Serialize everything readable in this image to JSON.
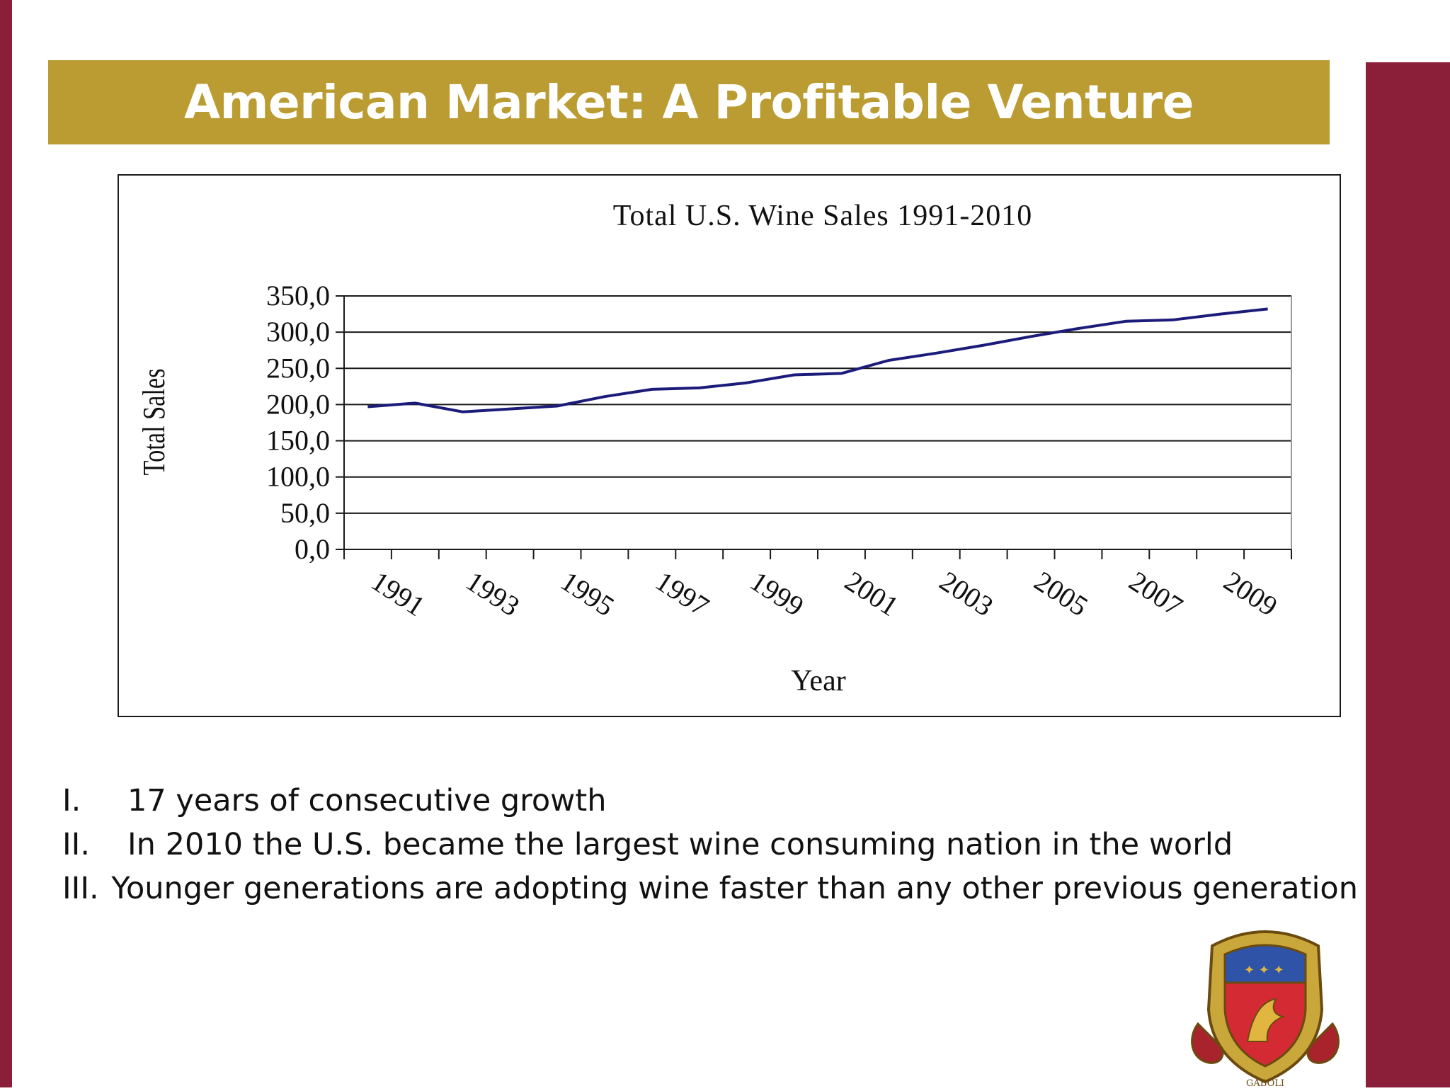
{
  "slide": {
    "title": "American Market: A Profitable Venture",
    "accent_color": "#8b1f3a",
    "title_bar_color": "#bb9c32"
  },
  "chart_data": {
    "type": "line",
    "title": "Total U.S. Wine Sales 1991-2010",
    "xlabel": "Year",
    "ylabel": "Total Sales",
    "x": [
      1991,
      1992,
      1993,
      1994,
      1995,
      1996,
      1997,
      1998,
      1999,
      2000,
      2001,
      2002,
      2003,
      2004,
      2005,
      2006,
      2007,
      2008,
      2009,
      2010
    ],
    "x_tick_labels": [
      "1991",
      "1993",
      "1995",
      "1997",
      "1999",
      "2001",
      "2003",
      "2005",
      "2007",
      "2009"
    ],
    "y_tick_labels": [
      "0,0",
      "50,0",
      "100,0",
      "150,0",
      "200,0",
      "250,0",
      "300,0",
      "350,0"
    ],
    "series": [
      {
        "values": [
          197,
          202,
          190,
          194,
          198,
          211,
          221,
          223,
          230,
          241,
          243,
          261,
          271,
          282,
          294,
          305,
          315,
          317,
          325,
          332
        ],
        "color": "#1b1b7a"
      }
    ],
    "ylim": [
      0,
      350
    ],
    "grid": true
  },
  "bullets": [
    {
      "num": "I.",
      "text": "17 years of consecutive growth"
    },
    {
      "num": "II.",
      "text": "In 2010 the U.S. became the largest wine consuming nation in the world"
    },
    {
      "num": "III.",
      "text": "Younger generations are adopting wine faster than any other previous generation"
    }
  ],
  "logo": {
    "icon": "heraldic-crest-icon",
    "text": "GABOLI"
  }
}
